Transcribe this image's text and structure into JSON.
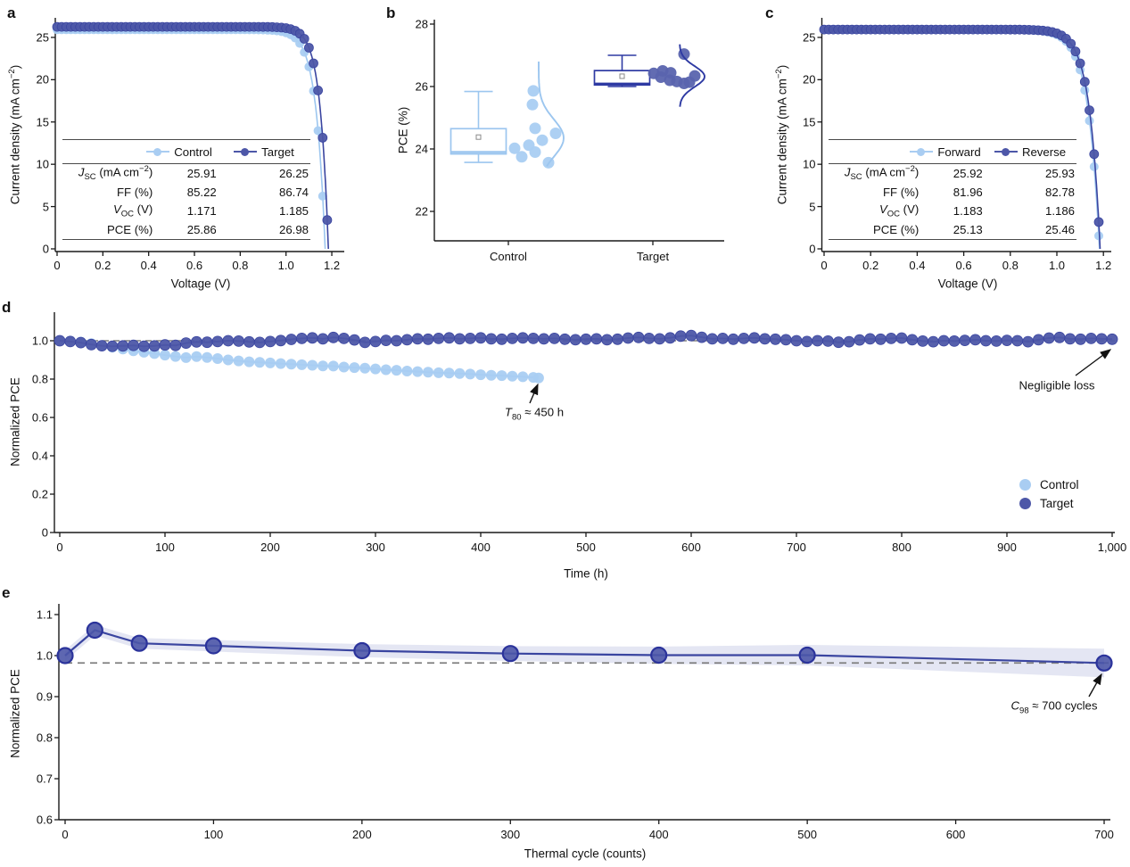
{
  "figure": {
    "panel_labels": [
      "a",
      "b",
      "c",
      "d",
      "e"
    ]
  },
  "colors": {
    "control": "#a9cdf2",
    "control_stroke": "#9cc6ef",
    "target": "#4d57a8",
    "target_dot": "#5a64ae",
    "target_line": "#3a45a0",
    "target_box": "#2e3aa3",
    "dashed": "#7f7f7f",
    "band": "#5a64b4",
    "axis": "#1a1a1a",
    "annotation": "#111111"
  },
  "chart_data": [
    {
      "id": "a",
      "type": "line",
      "xlabel": "Voltage (V)",
      "ylabel_pre": "Current density (mA cm",
      "ylabel_sup": "−2",
      "ylabel_post": ")",
      "xlim": [
        0,
        1.25
      ],
      "ylim": [
        0,
        27.5
      ],
      "x_tick_labels": [
        "0",
        "0.2",
        "0.4",
        "0.6",
        "0.8",
        "1.0",
        "1.2"
      ],
      "x_tick_values": [
        0,
        0.2,
        0.4,
        0.6,
        0.8,
        1.0,
        1.2
      ],
      "y_tick_labels": [
        "0",
        "5",
        "10",
        "15",
        "20",
        "25"
      ],
      "y_tick_values": [
        0,
        5,
        10,
        15,
        20,
        25
      ],
      "series": [
        {
          "name": "Control",
          "jsc": 25.91,
          "voc": 1.171,
          "ff": 85.22,
          "pce": 25.86,
          "knee": 0.04,
          "palette": "light"
        },
        {
          "name": "Target",
          "jsc": 26.25,
          "voc": 1.185,
          "ff": 86.74,
          "pce": 26.98,
          "knee": 0.036,
          "palette": "dark"
        }
      ],
      "table": {
        "header": [
          "Control",
          "Target"
        ],
        "rows": [
          {
            "sym": "J",
            "sym_sub": "SC",
            "pre": " (mA cm",
            "sup": "−2",
            "post": ")",
            "v1": "25.91",
            "v2": "26.25"
          },
          {
            "sym": "",
            "sym_sub": "",
            "pre": "FF (%)",
            "sup": "",
            "post": "",
            "v1": "85.22",
            "v2": "86.74"
          },
          {
            "sym": "V",
            "sym_sub": "OC",
            "pre": " (V)",
            "sup": "",
            "post": "",
            "v1": "1.171",
            "v2": "1.185"
          },
          {
            "sym": "",
            "sym_sub": "",
            "pre": "PCE (%)",
            "sup": "",
            "post": "",
            "v1": "25.86",
            "v2": "26.98"
          }
        ]
      }
    },
    {
      "id": "b",
      "type": "box-scatter",
      "ylabel": "PCE (%)",
      "ylim": [
        21,
        28
      ],
      "x_tick_labels": [
        "Control",
        "Target"
      ],
      "y_tick_labels": [
        "22",
        "24",
        "26",
        "28"
      ],
      "y_tick_values": [
        22,
        24,
        26,
        28
      ],
      "groups": [
        {
          "name": "Control",
          "palette": "light",
          "box": {
            "q1": 23.84,
            "q3": 24.65,
            "median": 23.9,
            "mean": 24.38,
            "whisker_low": 23.57,
            "whisker_high": 25.84
          },
          "points": [
            [
              -25,
              24.02
            ],
            [
              -17,
              23.75
            ],
            [
              -4,
              25.86
            ],
            [
              -5,
              25.42
            ],
            [
              -2,
              24.66
            ],
            [
              6,
              24.28
            ],
            [
              21,
              24.5
            ],
            [
              -9,
              24.12
            ],
            [
              -2,
              23.9
            ],
            [
              13,
              23.56
            ]
          ],
          "violin": {
            "mu": 24.35,
            "sd": 0.6,
            "lo": 23.45,
            "hi": 26.8
          }
        },
        {
          "name": "Target",
          "palette": "dark",
          "box": {
            "q1": 26.05,
            "q3": 26.51,
            "median": 26.09,
            "mean": 26.33,
            "whisker_low": 26.0,
            "whisker_high": 27.0
          },
          "points": [
            [
              -22,
              26.42
            ],
            [
              -12,
              26.5
            ],
            [
              -3,
              26.44
            ],
            [
              -14,
              26.3
            ],
            [
              12,
              27.04
            ],
            [
              -4,
              26.2
            ],
            [
              4,
              26.16
            ],
            [
              12,
              26.1
            ],
            [
              24,
              26.34
            ],
            [
              18,
              26.14
            ]
          ],
          "violin": {
            "mu": 26.32,
            "sd": 0.33,
            "lo": 25.35,
            "hi": 27.35
          }
        }
      ]
    },
    {
      "id": "c",
      "type": "line",
      "xlabel": "Voltage (V)",
      "ylabel_pre": "Current density (mA cm",
      "ylabel_sup": "−2",
      "ylabel_post": ")",
      "xlim": [
        0,
        1.25
      ],
      "ylim": [
        0,
        27.5
      ],
      "x_tick_labels": [
        "0",
        "0.2",
        "0.4",
        "0.6",
        "0.8",
        "1.0",
        "1.2"
      ],
      "x_tick_values": [
        0,
        0.2,
        0.4,
        0.6,
        0.8,
        1.0,
        1.2
      ],
      "y_tick_labels": [
        "0",
        "5",
        "10",
        "15",
        "20",
        "25"
      ],
      "y_tick_values": [
        0,
        5,
        10,
        15,
        20,
        25
      ],
      "series": [
        {
          "name": "Forward",
          "jsc": 25.92,
          "voc": 1.183,
          "ff": 81.96,
          "pce": 25.13,
          "knee": 0.049,
          "palette": "light"
        },
        {
          "name": "Reverse",
          "jsc": 25.93,
          "voc": 1.186,
          "ff": 82.78,
          "pce": 25.46,
          "knee": 0.046,
          "palette": "dark"
        }
      ],
      "table": {
        "header": [
          "Forward",
          "Reverse"
        ],
        "rows": [
          {
            "sym": "J",
            "sym_sub": "SC",
            "pre": " (mA cm",
            "sup": "−2",
            "post": ")",
            "v1": "25.92",
            "v2": "25.93"
          },
          {
            "sym": "",
            "sym_sub": "",
            "pre": "FF (%)",
            "sup": "",
            "post": "",
            "v1": "81.96",
            "v2": "82.78"
          },
          {
            "sym": "V",
            "sym_sub": "OC",
            "pre": " (V)",
            "sup": "",
            "post": "",
            "v1": "1.183",
            "v2": "1.186"
          },
          {
            "sym": "",
            "sym_sub": "",
            "pre": "PCE (%)",
            "sup": "",
            "post": "",
            "v1": "25.13",
            "v2": "25.46"
          }
        ]
      }
    },
    {
      "id": "d",
      "type": "line",
      "xlabel": "Time (h)",
      "ylabel": "Normalized PCE",
      "xlim": [
        0,
        1000
      ],
      "ylim": [
        0,
        1.15
      ],
      "x_tick_labels": [
        "0",
        "100",
        "200",
        "300",
        "400",
        "500",
        "600",
        "700",
        "800",
        "900",
        "1,000"
      ],
      "x_tick_values": [
        0,
        100,
        200,
        300,
        400,
        500,
        600,
        700,
        800,
        900,
        1000
      ],
      "y_tick_labels": [
        "0",
        "0.2",
        "0.4",
        "0.6",
        "0.8",
        "1.0"
      ],
      "y_tick_values": [
        0,
        0.2,
        0.4,
        0.6,
        0.8,
        1.0
      ],
      "dashed_y": 1.0,
      "legend": [
        "Control",
        "Target"
      ],
      "annotation_t80": {
        "sym": "T",
        "sym_sub": "80",
        "rest": " ≈ 450 h"
      },
      "annotation_negligible": "Negligible loss",
      "series": [
        {
          "name": "Control",
          "palette": "light",
          "x": [
            0,
            10,
            20,
            30,
            40,
            50,
            60,
            70,
            80,
            90,
            100,
            110,
            120,
            130,
            140,
            150,
            160,
            170,
            180,
            190,
            200,
            210,
            220,
            230,
            240,
            250,
            260,
            270,
            280,
            290,
            300,
            310,
            320,
            330,
            340,
            350,
            360,
            370,
            380,
            390,
            400,
            410,
            420,
            430,
            440,
            450,
            455
          ],
          "y": [
            1.0,
            0.998,
            0.993,
            0.985,
            0.975,
            0.966,
            0.957,
            0.948,
            0.94,
            0.933,
            0.925,
            0.918,
            0.912,
            0.917,
            0.913,
            0.907,
            0.9,
            0.895,
            0.89,
            0.887,
            0.884,
            0.881,
            0.878,
            0.875,
            0.872,
            0.869,
            0.868,
            0.863,
            0.86,
            0.857,
            0.853,
            0.849,
            0.846,
            0.842,
            0.839,
            0.836,
            0.833,
            0.831,
            0.829,
            0.826,
            0.823,
            0.82,
            0.818,
            0.815,
            0.812,
            0.809,
            0.806
          ]
        },
        {
          "name": "Target",
          "palette": "dark",
          "x": [
            0,
            10,
            20,
            30,
            40,
            50,
            60,
            70,
            80,
            90,
            100,
            110,
            120,
            130,
            140,
            150,
            160,
            170,
            180,
            190,
            200,
            210,
            220,
            230,
            240,
            250,
            260,
            270,
            280,
            290,
            300,
            310,
            320,
            330,
            340,
            350,
            360,
            370,
            380,
            390,
            400,
            410,
            420,
            430,
            440,
            450,
            460,
            470,
            480,
            490,
            500,
            510,
            520,
            530,
            540,
            550,
            560,
            570,
            580,
            590,
            600,
            610,
            620,
            630,
            640,
            650,
            660,
            670,
            680,
            690,
            700,
            710,
            720,
            730,
            740,
            750,
            760,
            770,
            780,
            790,
            800,
            810,
            820,
            830,
            840,
            850,
            860,
            870,
            880,
            890,
            900,
            910,
            920,
            930,
            940,
            950,
            960,
            970,
            980,
            990,
            1000
          ],
          "y": [
            1.0,
            0.996,
            0.99,
            0.98,
            0.974,
            0.971,
            0.973,
            0.976,
            0.971,
            0.973,
            0.978,
            0.976,
            0.988,
            0.994,
            0.992,
            0.996,
            1.0,
            0.998,
            0.994,
            0.991,
            0.996,
            1.001,
            1.007,
            1.012,
            1.015,
            1.01,
            1.017,
            1.012,
            1.004,
            0.991,
            0.996,
            1.002,
            1.0,
            1.005,
            1.01,
            1.008,
            1.012,
            1.015,
            1.01,
            1.012,
            1.015,
            1.01,
            1.008,
            1.012,
            1.015,
            1.012,
            1.01,
            1.012,
            1.008,
            1.005,
            1.008,
            1.01,
            1.005,
            1.008,
            1.014,
            1.017,
            1.012,
            1.01,
            1.015,
            1.024,
            1.027,
            1.018,
            1.01,
            1.012,
            1.008,
            1.012,
            1.015,
            1.01,
            1.008,
            1.005,
            1.0,
            0.996,
            1.0,
            0.998,
            0.992,
            0.995,
            1.004,
            1.01,
            1.008,
            1.012,
            1.014,
            1.005,
            0.998,
            0.995,
            1.0,
            0.998,
            1.002,
            1.005,
            1.0,
            0.998,
            1.002,
            1.0,
            0.995,
            1.005,
            1.014,
            1.017,
            1.01,
            1.008,
            1.012,
            1.01,
            1.008
          ]
        }
      ]
    },
    {
      "id": "e",
      "type": "line-band",
      "xlabel": "Thermal cycle (counts)",
      "ylabel": "Normalized PCE",
      "xlim": [
        0,
        700
      ],
      "ylim": [
        0.6,
        1.15
      ],
      "x_tick_labels": [
        "0",
        "100",
        "200",
        "300",
        "400",
        "500",
        "600",
        "700"
      ],
      "x_tick_values": [
        0,
        100,
        200,
        300,
        400,
        500,
        600,
        700
      ],
      "y_tick_labels": [
        "0.6",
        "0.7",
        "0.8",
        "0.9",
        "1.0",
        "1.1"
      ],
      "y_tick_values": [
        0.6,
        0.7,
        0.8,
        0.9,
        1.0,
        1.1
      ],
      "dashed_y": 0.982,
      "annotation_c98": {
        "sym": "C",
        "sym_sub": "98",
        "rest": " ≈ 700 cycles"
      },
      "x": [
        0,
        20,
        50,
        100,
        200,
        300,
        400,
        500,
        700
      ],
      "y": [
        1.0,
        1.062,
        1.03,
        1.024,
        1.012,
        1.005,
        1.001,
        1.001,
        0.982
      ],
      "band_halfwidth": [
        0.013,
        0.013,
        0.013,
        0.014,
        0.016,
        0.018,
        0.021,
        0.025,
        0.035
      ]
    }
  ]
}
